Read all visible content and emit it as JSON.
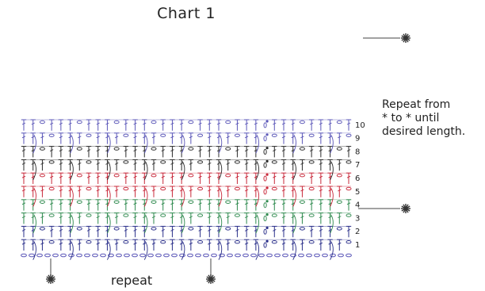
{
  "title": "Chart 1",
  "row_numbers": [
    "1",
    "2",
    "3",
    "4",
    "5",
    "6",
    "7",
    "8",
    "9",
    "10"
  ],
  "row_colors": [
    "#2a2f8a",
    "#2a2f8a",
    "#2e8a4e",
    "#2e8a4e",
    "#c8283a",
    "#c8283a",
    "#2b2b2b",
    "#2b2b2b",
    "#5b57b8",
    "#5b57b8"
  ],
  "repeat_label": "repeat",
  "note_lines": [
    "Repeat from",
    " * to * until",
    "desired length."
  ],
  "marker_symbol": "asterisk-marker-icon",
  "foundation_color": "#5b57b8"
}
